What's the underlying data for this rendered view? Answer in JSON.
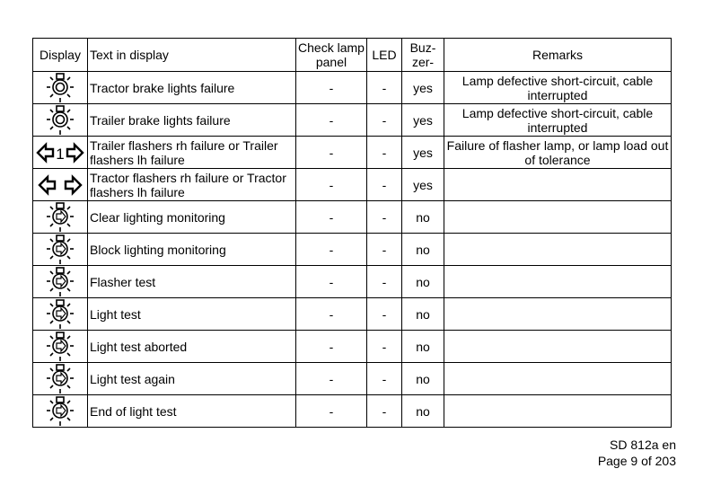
{
  "headers": {
    "display": "Display",
    "text": "Text in display",
    "check": "Check lamp panel",
    "led": "LED",
    "buzzer": "Buz-zer-",
    "remarks": "Remarks"
  },
  "rows": [
    {
      "icon": "lamp-brake-icon",
      "text": "Tractor brake lights failure",
      "check": "-",
      "led": "-",
      "buzzer": "yes",
      "remarks": "Lamp defective short-circuit, cable interrupted"
    },
    {
      "icon": "lamp-brake-icon",
      "text": "Trailer brake lights failure",
      "check": "-",
      "led": "-",
      "buzzer": "yes",
      "remarks": "Lamp defective short-circuit, cable interrupted"
    },
    {
      "icon": "flasher-1-icon",
      "text": "Trailer flashers rh failure or Trailer flashers lh failure",
      "check": "-",
      "led": "-",
      "buzzer": "yes",
      "remarks": "Failure of flasher lamp, or lamp load out of tolerance",
      "icon_label": "1"
    },
    {
      "icon": "flasher-icon",
      "text": "Tractor flashers rh failure or Tractor flashers lh failure",
      "check": "-",
      "led": "-",
      "buzzer": "yes",
      "remarks": ""
    },
    {
      "icon": "lamp-monitor-icon",
      "text": "Clear lighting monitoring",
      "check": "-",
      "led": "-",
      "buzzer": "no",
      "remarks": ""
    },
    {
      "icon": "lamp-monitor-icon",
      "text": "Block lighting monitoring",
      "check": "-",
      "led": "-",
      "buzzer": "no",
      "remarks": ""
    },
    {
      "icon": "lamp-monitor-icon",
      "text": "Flasher test",
      "check": "-",
      "led": "-",
      "buzzer": "no",
      "remarks": ""
    },
    {
      "icon": "lamp-monitor-icon",
      "text": "Light test",
      "check": "-",
      "led": "-",
      "buzzer": "no",
      "remarks": ""
    },
    {
      "icon": "lamp-monitor-icon",
      "text": "Light test aborted",
      "check": "-",
      "led": "-",
      "buzzer": "no",
      "remarks": ""
    },
    {
      "icon": "lamp-monitor-icon",
      "text": "Light test again",
      "check": "-",
      "led": "-",
      "buzzer": "no",
      "remarks": ""
    },
    {
      "icon": "lamp-monitor-icon",
      "text": "End of light test",
      "check": "-",
      "led": "-",
      "buzzer": "no",
      "remarks": ""
    }
  ],
  "footer": {
    "doc": "SD 812a en",
    "page": "Page 9 of 203"
  }
}
